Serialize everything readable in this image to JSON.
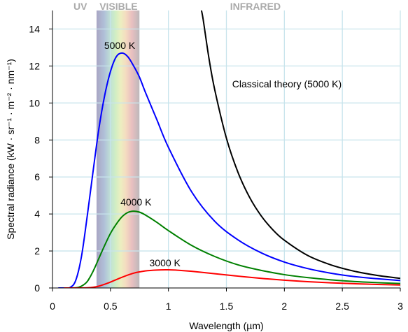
{
  "chart_data": {
    "type": "line",
    "xlabel": "Wavelength (µm)",
    "ylabel": "Spectral radiance (kW · sr⁻¹ · m⁻² · nm⁻¹)",
    "xlim": [
      0,
      3
    ],
    "ylim": [
      0,
      15
    ],
    "x_ticks": [
      "0",
      "0.5",
      "1",
      "1.5",
      "2",
      "2.5",
      "3"
    ],
    "y_ticks": [
      "0",
      "2",
      "4",
      "6",
      "8",
      "10",
      "12",
      "14"
    ],
    "grid": true,
    "bands": [
      {
        "label": "UV",
        "range": [
          0,
          0.38
        ]
      },
      {
        "label": "VISIBLE",
        "range": [
          0.38,
          0.75
        ]
      },
      {
        "label": "INFRARED",
        "range": [
          0.75,
          3
        ]
      }
    ],
    "series": [
      {
        "name": "5000 K",
        "color": "#0000ff",
        "temperature_K": 5000,
        "peak": {
          "x": 0.58,
          "y": 12.7
        },
        "x": [
          0.05,
          0.1,
          0.15,
          0.2,
          0.25,
          0.3,
          0.35,
          0.4,
          0.45,
          0.5,
          0.55,
          0.6,
          0.65,
          0.7,
          0.75,
          0.8,
          0.9,
          1.0,
          1.2,
          1.4,
          1.6,
          1.8,
          2.0,
          2.2,
          2.4,
          2.6,
          2.8,
          3.0
        ],
        "y": [
          0,
          0,
          0.02,
          0.4,
          1.7,
          3.9,
          6.3,
          8.6,
          10.4,
          11.7,
          12.5,
          12.7,
          12.5,
          12.0,
          11.4,
          10.6,
          9.1,
          7.6,
          5.2,
          3.6,
          2.6,
          1.9,
          1.4,
          1.05,
          0.8,
          0.62,
          0.5,
          0.4
        ]
      },
      {
        "name": "4000 K",
        "color": "#008000",
        "temperature_K": 4000,
        "peak": {
          "x": 0.72,
          "y": 4.15
        },
        "x": [
          0.1,
          0.2,
          0.25,
          0.3,
          0.35,
          0.4,
          0.45,
          0.5,
          0.55,
          0.6,
          0.65,
          0.7,
          0.75,
          0.8,
          0.9,
          1.0,
          1.2,
          1.4,
          1.6,
          1.8,
          2.0,
          2.2,
          2.4,
          2.6,
          2.8,
          3.0
        ],
        "y": [
          0,
          0.01,
          0.1,
          0.35,
          0.9,
          1.6,
          2.3,
          2.95,
          3.45,
          3.85,
          4.08,
          4.15,
          4.1,
          3.95,
          3.55,
          3.1,
          2.3,
          1.7,
          1.25,
          0.95,
          0.72,
          0.56,
          0.44,
          0.35,
          0.29,
          0.24
        ]
      },
      {
        "name": "3000 K",
        "color": "#ff0000",
        "temperature_K": 3000,
        "peak": {
          "x": 0.97,
          "y": 0.98
        },
        "x": [
          0.1,
          0.2,
          0.3,
          0.35,
          0.4,
          0.45,
          0.5,
          0.6,
          0.7,
          0.8,
          0.9,
          1.0,
          1.1,
          1.2,
          1.4,
          1.6,
          1.8,
          2.0,
          2.2,
          2.4,
          2.6,
          2.8,
          3.0
        ],
        "y": [
          0,
          0,
          0.01,
          0.04,
          0.1,
          0.2,
          0.32,
          0.58,
          0.8,
          0.92,
          0.97,
          0.98,
          0.95,
          0.9,
          0.77,
          0.64,
          0.52,
          0.42,
          0.34,
          0.28,
          0.23,
          0.19,
          0.16
        ]
      },
      {
        "name": "Classical theory (5000 K)",
        "color": "#000000",
        "temperature_K": 5000,
        "x": [
          1.285,
          1.3,
          1.35,
          1.4,
          1.5,
          1.6,
          1.7,
          1.8,
          1.9,
          2.0,
          2.2,
          2.4,
          2.6,
          2.8,
          3.0
        ],
        "y": [
          15.0,
          14.5,
          12.4,
          10.7,
          8.1,
          6.25,
          4.9,
          3.9,
          3.15,
          2.58,
          1.76,
          1.25,
          0.91,
          0.68,
          0.52
        ]
      }
    ],
    "labels": {
      "band_uv": "UV",
      "band_visible": "VISIBLE",
      "band_infrared": "INFRARED",
      "curve_5000": "5000 K",
      "curve_4000": "4000 K",
      "curve_3000": "3000 K",
      "curve_classical": "Classical theory (5000 K)"
    }
  }
}
